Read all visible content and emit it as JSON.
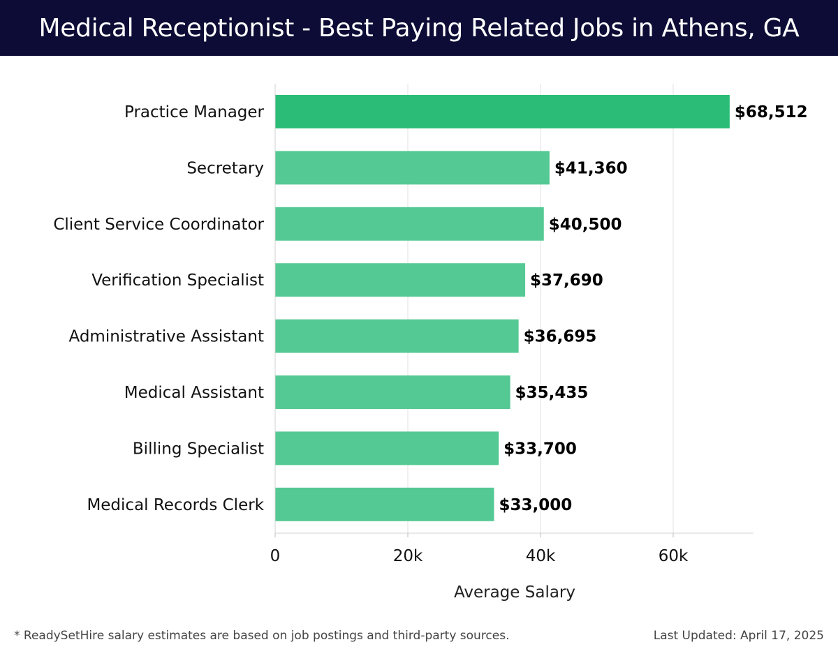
{
  "header": {
    "title": "Medical Receptionist - Best Paying Related Jobs in Athens, GA"
  },
  "footer": {
    "note": "* ReadySetHire salary estimates are based on job postings and third-party sources.",
    "updated": "Last Updated: April 17, 2025"
  },
  "colors": {
    "header_bg": "#0c0c36",
    "highlight_bar": "#2bbd77",
    "bar": "#55c994"
  },
  "chart_data": {
    "type": "bar",
    "orientation": "horizontal",
    "title": "Medical Receptionist - Best Paying Related Jobs in Athens, GA",
    "xlabel": "Average Salary",
    "ylabel": "",
    "categories": [
      "Practice Manager",
      "Secretary",
      "Client Service Coordinator",
      "Verification Specialist",
      "Administrative Assistant",
      "Medical Assistant",
      "Billing Specialist",
      "Medical Records Clerk"
    ],
    "values": [
      68512,
      41360,
      40500,
      37690,
      36695,
      35435,
      33700,
      33000
    ],
    "value_labels": [
      "$68,512",
      "$41,360",
      "$40,500",
      "$37,690",
      "$36,695",
      "$35,435",
      "$33,700",
      "$33,000"
    ],
    "xlim": [
      0,
      72000
    ],
    "xticks": [
      0,
      20000,
      40000,
      60000
    ],
    "xtick_labels": [
      "0",
      "20k",
      "40k",
      "60k"
    ],
    "grid": true,
    "legend": "none"
  }
}
